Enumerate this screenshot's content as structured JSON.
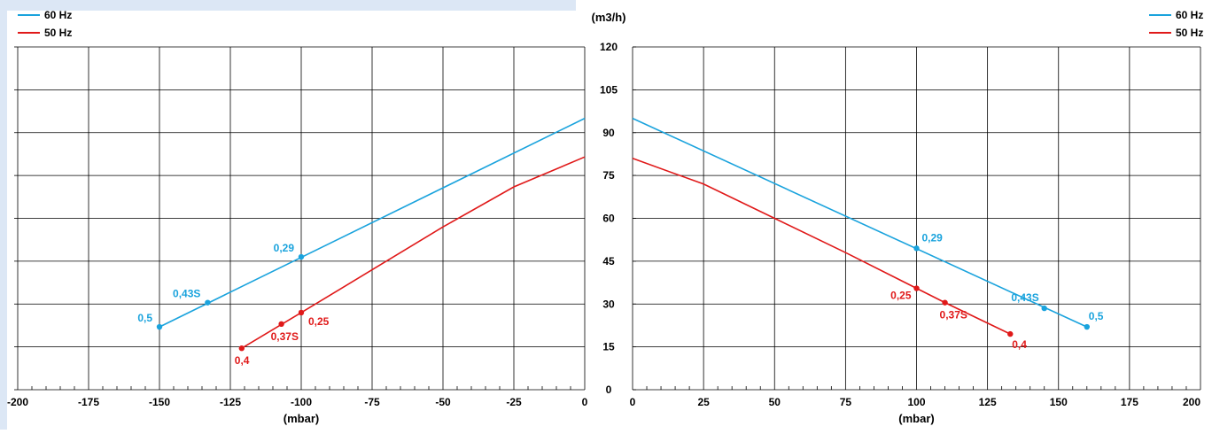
{
  "colors": {
    "blue_series": "#1aa3dd",
    "red_series": "#e01919",
    "grid": "#000000",
    "background_band": "#dce7f5"
  },
  "y_axis": {
    "unit_label": "(m3/h)",
    "ticks": [
      "0",
      "15",
      "30",
      "45",
      "60",
      "75",
      "90",
      "105",
      "120"
    ],
    "ylim": [
      0,
      120
    ]
  },
  "chart_data": [
    {
      "type": "line",
      "xlabel": "(mbar)",
      "ylabel": "(m3/h)",
      "xlim": [
        -200,
        0
      ],
      "ylim": [
        0,
        120
      ],
      "x_ticks": [
        "-200",
        "-175",
        "-150",
        "-125",
        "-100",
        "-75",
        "-50",
        "-25",
        "0"
      ],
      "grid": true,
      "legend": {
        "position": "top-left",
        "entries": [
          "60 Hz",
          "50 Hz"
        ]
      },
      "series": [
        {
          "name": "60 Hz",
          "color": "#1aa3dd",
          "x": [
            -150,
            0
          ],
          "y": [
            22,
            95
          ],
          "points": [
            {
              "x": -150,
              "y": 22,
              "label": "0,5"
            },
            {
              "x": -133,
              "y": 30.5,
              "label": "0,43S"
            },
            {
              "x": -100,
              "y": 46.5,
              "label": "0,29"
            }
          ]
        },
        {
          "name": "50 Hz",
          "color": "#e01919",
          "x": [
            -121,
            -100,
            -75,
            -50,
            -25,
            0
          ],
          "y": [
            14.5,
            27,
            42,
            57,
            71,
            81.5
          ],
          "points": [
            {
              "x": -121,
              "y": 14.5,
              "label": "0,4"
            },
            {
              "x": -107,
              "y": 23,
              "label": "0,37S"
            },
            {
              "x": -100,
              "y": 27,
              "label": "0,25"
            }
          ]
        }
      ]
    },
    {
      "type": "line",
      "xlabel": "(mbar)",
      "ylabel": "(m3/h)",
      "xlim": [
        0,
        200
      ],
      "ylim": [
        0,
        120
      ],
      "x_ticks": [
        "0",
        "25",
        "50",
        "75",
        "100",
        "125",
        "150",
        "175",
        "200"
      ],
      "grid": true,
      "legend": {
        "position": "top-right",
        "entries": [
          "60 Hz",
          "50 Hz"
        ]
      },
      "series": [
        {
          "name": "60 Hz",
          "color": "#1aa3dd",
          "x": [
            0,
            160
          ],
          "y": [
            95,
            22
          ],
          "points": [
            {
              "x": 100,
              "y": 49.5,
              "label": "0,29"
            },
            {
              "x": 145,
              "y": 28.5,
              "label": "0,43S"
            },
            {
              "x": 160,
              "y": 22,
              "label": "0,5"
            }
          ]
        },
        {
          "name": "50 Hz",
          "color": "#e01919",
          "x": [
            0,
            25,
            50,
            75,
            100,
            110,
            133
          ],
          "y": [
            81,
            72,
            60,
            48,
            35.5,
            30.5,
            19.5
          ],
          "points": [
            {
              "x": 100,
              "y": 35.5,
              "label": "0,25"
            },
            {
              "x": 110,
              "y": 30.5,
              "label": "0,37S"
            },
            {
              "x": 133,
              "y": 19.5,
              "label": "0,4"
            }
          ]
        }
      ]
    }
  ]
}
